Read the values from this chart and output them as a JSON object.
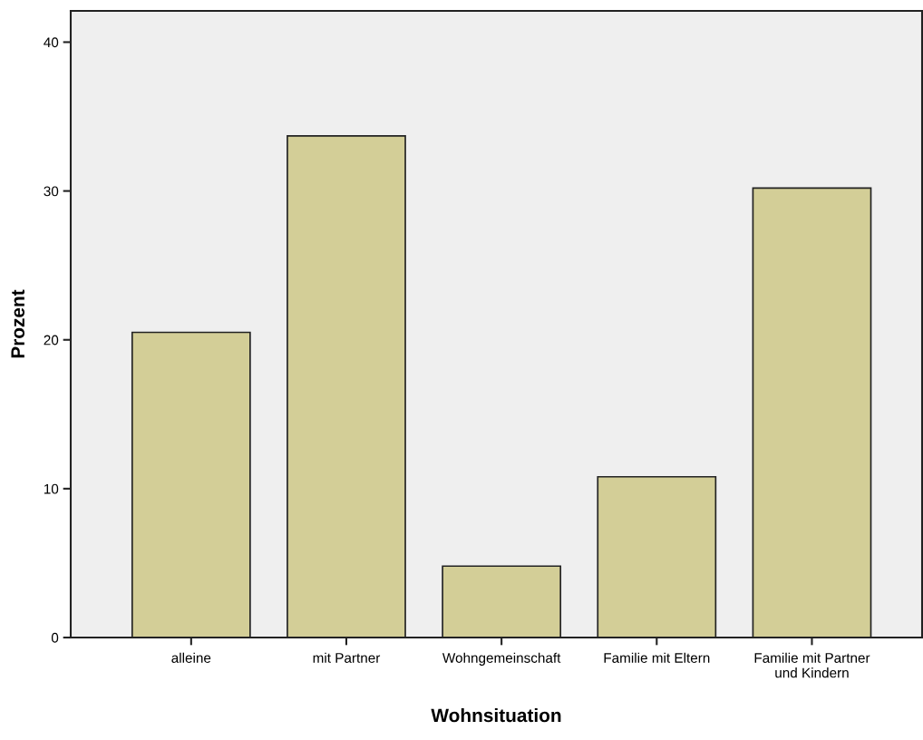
{
  "chart_data": {
    "type": "bar",
    "xlabel": "Wohnsituation",
    "ylabel": "Prozent",
    "categories": [
      "alleine",
      "mit Partner",
      "Wohngemeinschaft",
      "Familie mit Eltern",
      "Familie mit Partner\nund Kindern"
    ],
    "values": [
      20.5,
      33.7,
      4.8,
      10.8,
      30.2
    ],
    "color": "#d3ce97",
    "ylim": [
      0,
      42.1
    ],
    "yticks": [
      0,
      10,
      20,
      30,
      40
    ],
    "grid": false
  }
}
